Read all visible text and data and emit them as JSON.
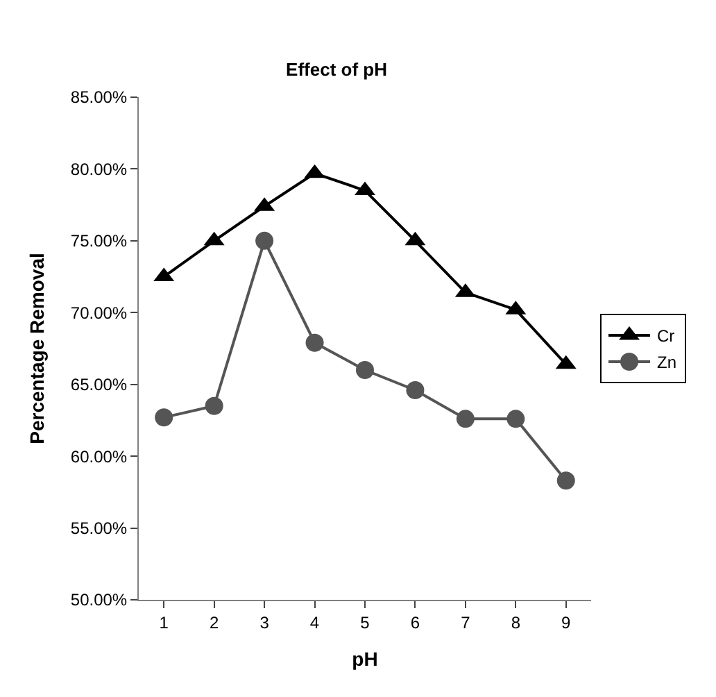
{
  "chart_data": {
    "type": "line",
    "title": "Effect of pH",
    "xlabel": "pH",
    "ylabel": "Percentage Removal",
    "categories": [
      "1",
      "2",
      "3",
      "4",
      "5",
      "6",
      "7",
      "8",
      "9"
    ],
    "series": [
      {
        "name": "Cr",
        "color": "#000000",
        "marker": "triangle",
        "values": [
          72.5,
          75.0,
          77.4,
          79.7,
          78.5,
          75.0,
          71.4,
          70.2,
          66.4
        ]
      },
      {
        "name": "Zn",
        "color": "#555555",
        "marker": "circle",
        "values": [
          62.7,
          63.5,
          75.0,
          67.9,
          66.0,
          64.6,
          62.6,
          62.6,
          58.3
        ]
      }
    ],
    "ylim": [
      50,
      85
    ],
    "yticks": [
      {
        "value": 50,
        "label": "50.00%"
      },
      {
        "value": 55,
        "label": "55.00%"
      },
      {
        "value": 60,
        "label": "60.00%"
      },
      {
        "value": 65,
        "label": "65.00%"
      },
      {
        "value": 70,
        "label": "70.00%"
      },
      {
        "value": 75,
        "label": "75.00%"
      },
      {
        "value": 80,
        "label": "80.00%"
      },
      {
        "value": 85,
        "label": "85.00%"
      }
    ],
    "legend": "right",
    "line_style": "solid"
  }
}
